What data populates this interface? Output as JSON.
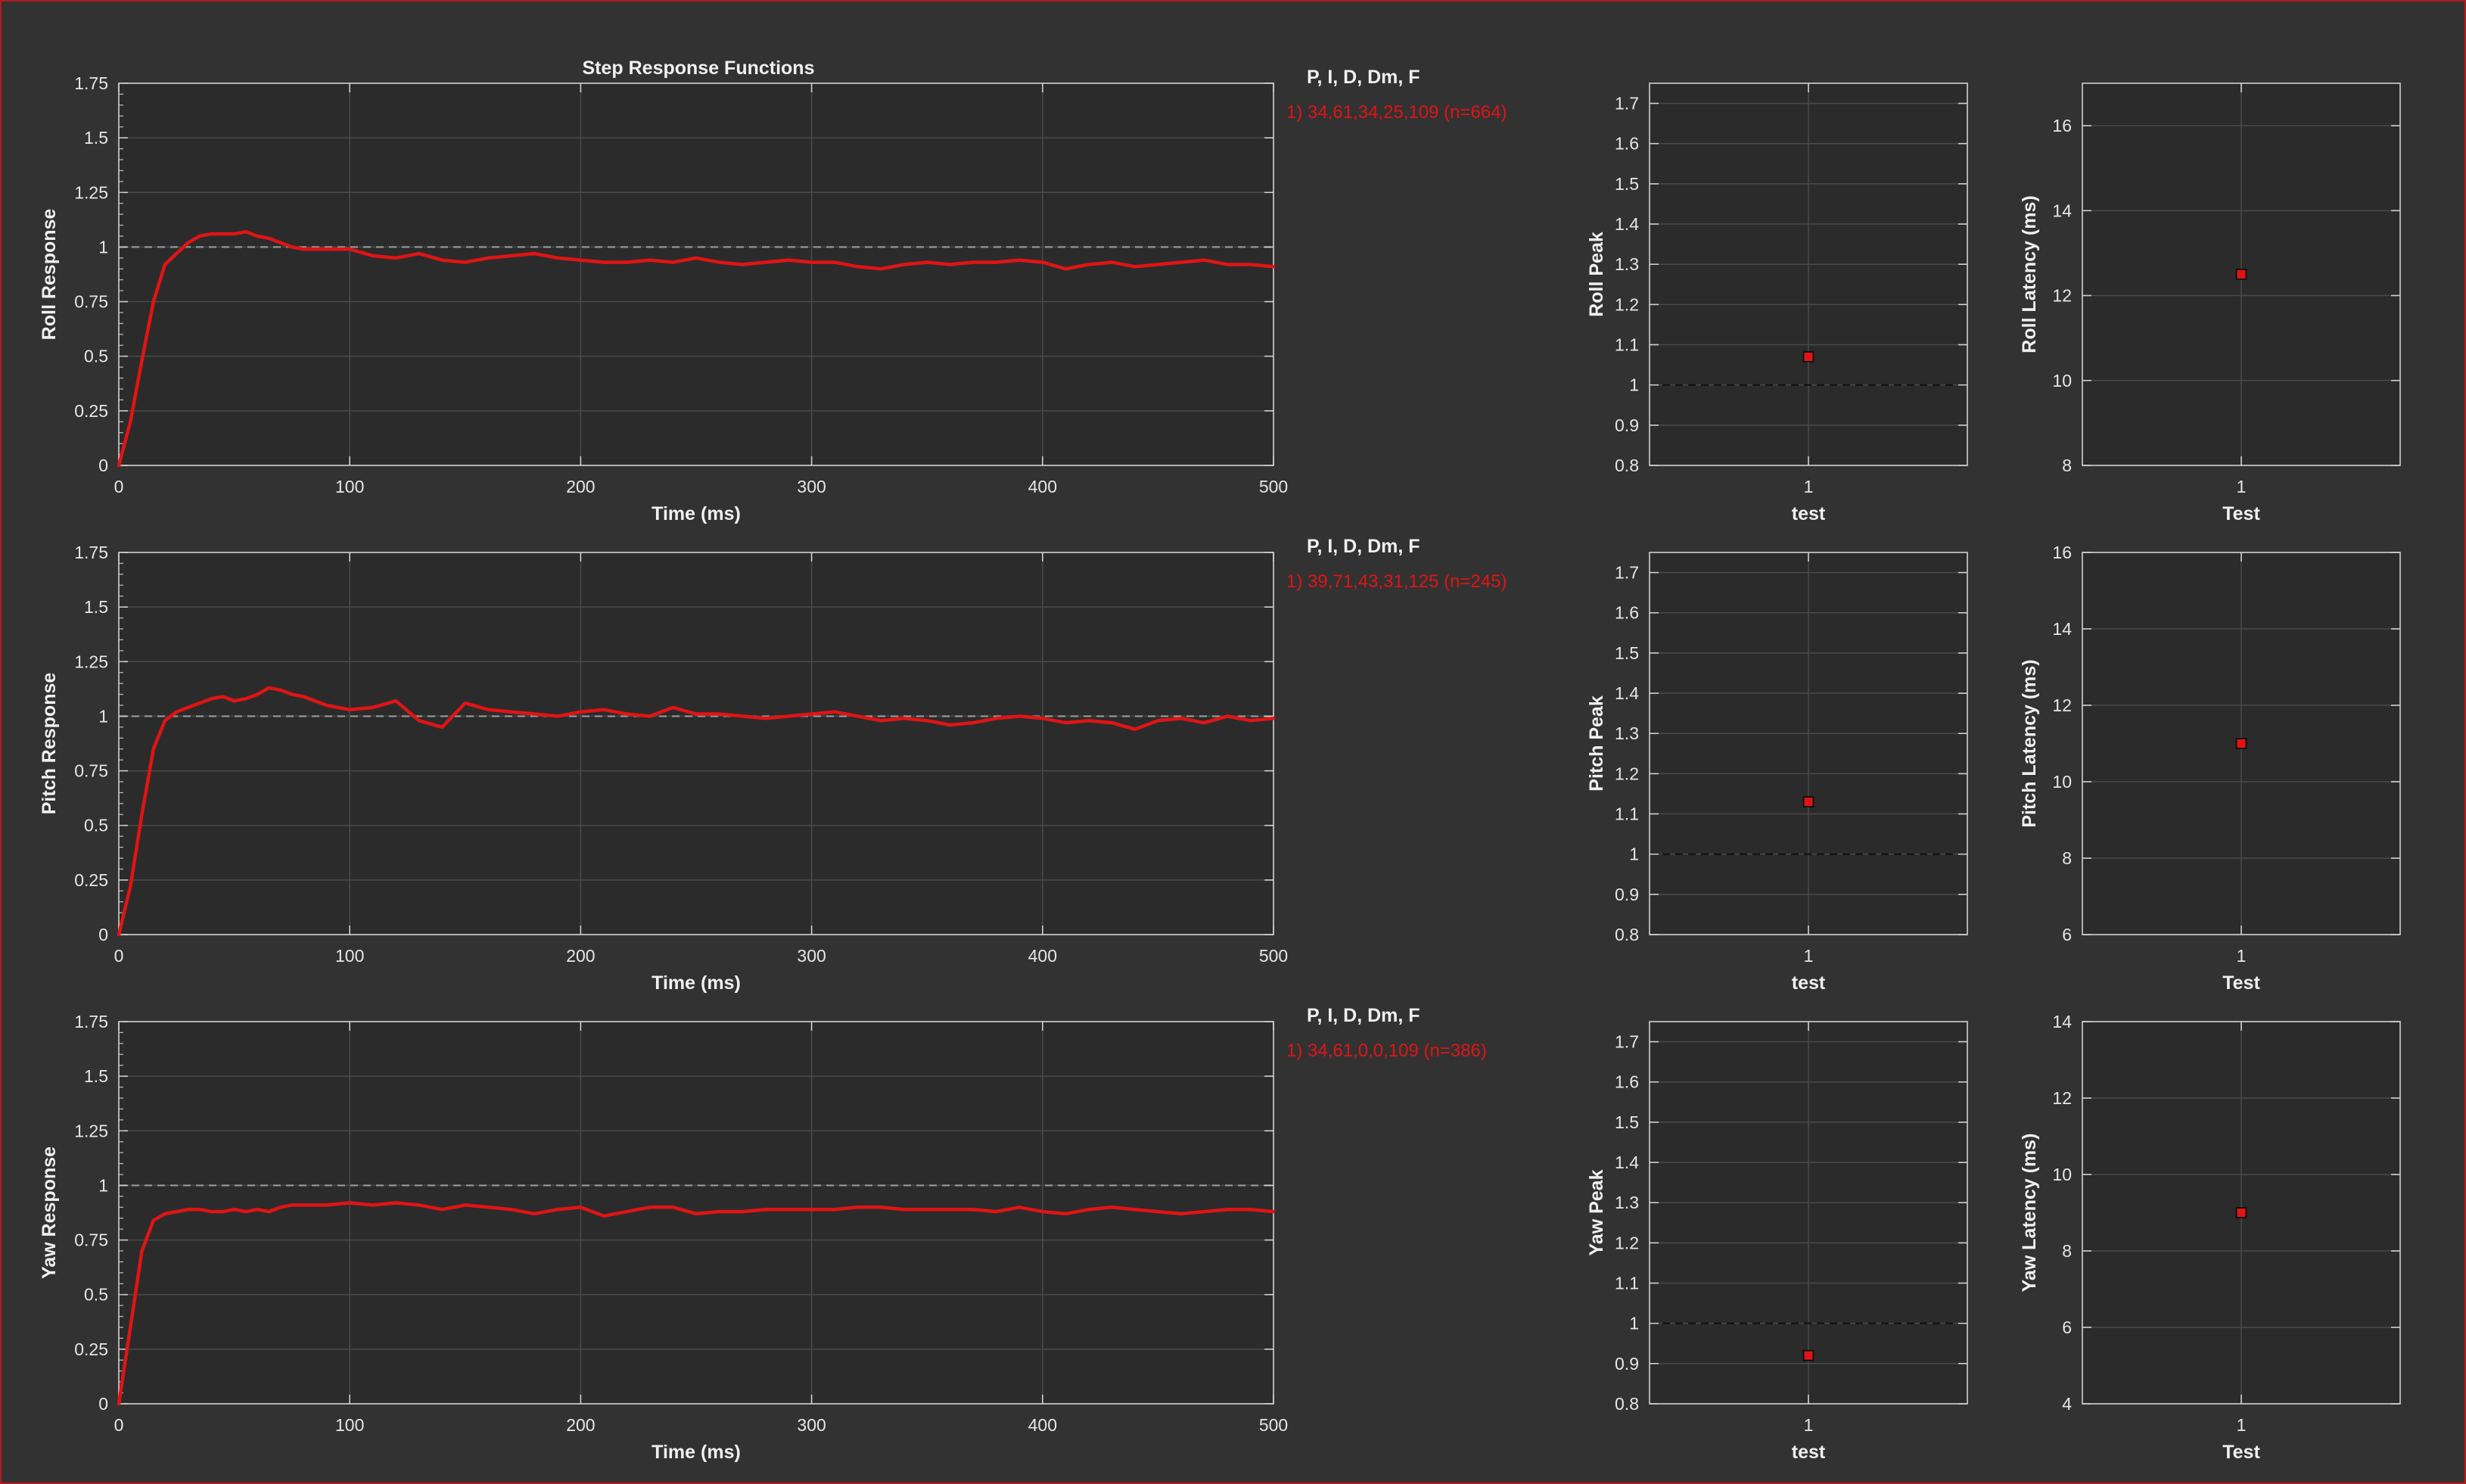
{
  "accent_color": "#e01414",
  "background_color": "#323232",
  "chart_data": [
    {
      "type": "line",
      "name": "roll-step-response",
      "title": "Step Response Functions",
      "xlabel": "Time (ms)",
      "ylabel": "Roll Response",
      "xlim": [
        0,
        500
      ],
      "ylim": [
        0,
        1.75
      ],
      "xticks": [
        "0",
        "100",
        "200",
        "300",
        "400",
        "500"
      ],
      "yticks": [
        "0",
        "0.25",
        "0.5",
        "0.75",
        "1",
        "1.25",
        "1.5",
        "1.75"
      ],
      "reference_line": 1,
      "grid": true,
      "legend_header": "P, I, D, Dm, F",
      "series": [
        {
          "name": "1) 34,61,34,25,109  (n=664)",
          "x": [
            0,
            5,
            10,
            15,
            20,
            25,
            30,
            35,
            40,
            45,
            50,
            55,
            60,
            65,
            70,
            75,
            80,
            90,
            100,
            110,
            120,
            130,
            140,
            150,
            160,
            170,
            180,
            190,
            200,
            210,
            220,
            230,
            240,
            250,
            260,
            270,
            280,
            290,
            300,
            310,
            320,
            330,
            340,
            350,
            360,
            370,
            380,
            390,
            400,
            410,
            420,
            430,
            440,
            450,
            460,
            470,
            480,
            490,
            500
          ],
          "y": [
            0,
            0.2,
            0.48,
            0.75,
            0.92,
            0.97,
            1.02,
            1.05,
            1.06,
            1.06,
            1.06,
            1.07,
            1.05,
            1.04,
            1.02,
            1.0,
            0.99,
            0.99,
            0.99,
            0.96,
            0.95,
            0.97,
            0.94,
            0.93,
            0.95,
            0.96,
            0.97,
            0.95,
            0.94,
            0.93,
            0.93,
            0.94,
            0.93,
            0.95,
            0.93,
            0.92,
            0.93,
            0.94,
            0.93,
            0.93,
            0.91,
            0.9,
            0.92,
            0.93,
            0.92,
            0.93,
            0.93,
            0.94,
            0.93,
            0.9,
            0.92,
            0.93,
            0.91,
            0.92,
            0.93,
            0.94,
            0.92,
            0.92,
            0.91
          ]
        }
      ]
    },
    {
      "type": "line",
      "name": "pitch-step-response",
      "xlabel": "Time (ms)",
      "ylabel": "Pitch Response",
      "xlim": [
        0,
        500
      ],
      "ylim": [
        0,
        1.75
      ],
      "xticks": [
        "0",
        "100",
        "200",
        "300",
        "400",
        "500"
      ],
      "yticks": [
        "0",
        "0.25",
        "0.5",
        "0.75",
        "1",
        "1.25",
        "1.5",
        "1.75"
      ],
      "reference_line": 1,
      "grid": true,
      "legend_header": "P, I, D, Dm, F",
      "series": [
        {
          "name": "1) 39,71,43,31,125  (n=245)",
          "x": [
            0,
            5,
            10,
            15,
            20,
            25,
            30,
            35,
            40,
            45,
            50,
            55,
            60,
            65,
            70,
            75,
            80,
            90,
            100,
            110,
            120,
            130,
            140,
            150,
            160,
            170,
            180,
            190,
            200,
            210,
            220,
            230,
            240,
            250,
            260,
            270,
            280,
            290,
            300,
            310,
            320,
            330,
            340,
            350,
            360,
            370,
            380,
            390,
            400,
            410,
            420,
            430,
            440,
            450,
            460,
            470,
            480,
            490,
            500
          ],
          "y": [
            0,
            0.22,
            0.55,
            0.85,
            0.98,
            1.02,
            1.04,
            1.06,
            1.08,
            1.09,
            1.07,
            1.08,
            1.1,
            1.13,
            1.12,
            1.1,
            1.09,
            1.05,
            1.03,
            1.04,
            1.07,
            0.98,
            0.95,
            1.06,
            1.03,
            1.02,
            1.01,
            1.0,
            1.02,
            1.03,
            1.01,
            1.0,
            1.04,
            1.01,
            1.01,
            1.0,
            0.99,
            1.0,
            1.01,
            1.02,
            1.0,
            0.98,
            0.99,
            0.98,
            0.96,
            0.97,
            0.99,
            1.0,
            0.99,
            0.97,
            0.98,
            0.97,
            0.94,
            0.98,
            0.99,
            0.97,
            1.0,
            0.98,
            0.99
          ]
        }
      ]
    },
    {
      "type": "line",
      "name": "yaw-step-response",
      "xlabel": "Time (ms)",
      "ylabel": "Yaw Response",
      "xlim": [
        0,
        500
      ],
      "ylim": [
        0,
        1.75
      ],
      "xticks": [
        "0",
        "100",
        "200",
        "300",
        "400",
        "500"
      ],
      "yticks": [
        "0",
        "0.25",
        "0.5",
        "0.75",
        "1",
        "1.25",
        "1.5",
        "1.75"
      ],
      "reference_line": 1,
      "grid": true,
      "legend_header": "P, I, D, Dm, F",
      "series": [
        {
          "name": "1) 34,61,0,0,109  (n=386)",
          "x": [
            0,
            5,
            10,
            15,
            20,
            25,
            30,
            35,
            40,
            45,
            50,
            55,
            60,
            65,
            70,
            75,
            80,
            90,
            100,
            110,
            120,
            130,
            140,
            150,
            160,
            170,
            180,
            190,
            200,
            210,
            220,
            230,
            240,
            250,
            260,
            270,
            280,
            290,
            300,
            310,
            320,
            330,
            340,
            350,
            360,
            370,
            380,
            390,
            400,
            410,
            420,
            430,
            440,
            450,
            460,
            470,
            480,
            490,
            500
          ],
          "y": [
            0,
            0.35,
            0.7,
            0.84,
            0.87,
            0.88,
            0.89,
            0.89,
            0.88,
            0.88,
            0.89,
            0.88,
            0.89,
            0.88,
            0.9,
            0.91,
            0.91,
            0.91,
            0.92,
            0.91,
            0.92,
            0.91,
            0.89,
            0.91,
            0.9,
            0.89,
            0.87,
            0.89,
            0.9,
            0.86,
            0.88,
            0.9,
            0.9,
            0.87,
            0.88,
            0.88,
            0.89,
            0.89,
            0.89,
            0.89,
            0.9,
            0.9,
            0.89,
            0.89,
            0.89,
            0.89,
            0.88,
            0.9,
            0.88,
            0.87,
            0.89,
            0.9,
            0.89,
            0.88,
            0.87,
            0.88,
            0.89,
            0.89,
            0.88
          ]
        }
      ]
    },
    {
      "type": "scatter",
      "name": "roll-peak",
      "ylabel": "Roll Peak",
      "xlabel": "test",
      "categories": [
        "1"
      ],
      "values": [
        1.07
      ],
      "ylim": [
        0.8,
        1.75
      ],
      "yticks": [
        "0.8",
        "0.9",
        "1",
        "1.1",
        "1.2",
        "1.3",
        "1.4",
        "1.5",
        "1.6",
        "1.7"
      ],
      "reference_line": 1,
      "grid": true
    },
    {
      "type": "scatter",
      "name": "roll-latency",
      "ylabel": "Roll Latency (ms)",
      "xlabel": "Test",
      "categories": [
        "1"
      ],
      "values": [
        12.5
      ],
      "ylim": [
        8,
        17
      ],
      "yticks": [
        "8",
        "10",
        "12",
        "14",
        "16"
      ],
      "grid": true
    },
    {
      "type": "scatter",
      "name": "pitch-peak",
      "ylabel": "Pitch Peak",
      "xlabel": "test",
      "categories": [
        "1"
      ],
      "values": [
        1.13
      ],
      "ylim": [
        0.8,
        1.75
      ],
      "yticks": [
        "0.8",
        "0.9",
        "1",
        "1.1",
        "1.2",
        "1.3",
        "1.4",
        "1.5",
        "1.6",
        "1.7"
      ],
      "reference_line": 1,
      "grid": true
    },
    {
      "type": "scatter",
      "name": "pitch-latency",
      "ylabel": "Pitch Latency (ms)",
      "xlabel": "Test",
      "categories": [
        "1"
      ],
      "values": [
        11
      ],
      "ylim": [
        6,
        16
      ],
      "yticks": [
        "6",
        "8",
        "10",
        "12",
        "14",
        "16"
      ],
      "grid": true
    },
    {
      "type": "scatter",
      "name": "yaw-peak",
      "ylabel": "Yaw Peak",
      "xlabel": "test",
      "categories": [
        "1"
      ],
      "values": [
        0.92
      ],
      "ylim": [
        0.8,
        1.75
      ],
      "yticks": [
        "0.8",
        "0.9",
        "1",
        "1.1",
        "1.2",
        "1.3",
        "1.4",
        "1.5",
        "1.6",
        "1.7"
      ],
      "reference_line": 1,
      "grid": true
    },
    {
      "type": "scatter",
      "name": "yaw-latency",
      "ylabel": "Yaw Latency (ms)",
      "xlabel": "Test",
      "categories": [
        "1"
      ],
      "values": [
        9
      ],
      "ylim": [
        4,
        14
      ],
      "yticks": [
        "4",
        "6",
        "8",
        "10",
        "12",
        "14"
      ],
      "grid": true
    }
  ]
}
